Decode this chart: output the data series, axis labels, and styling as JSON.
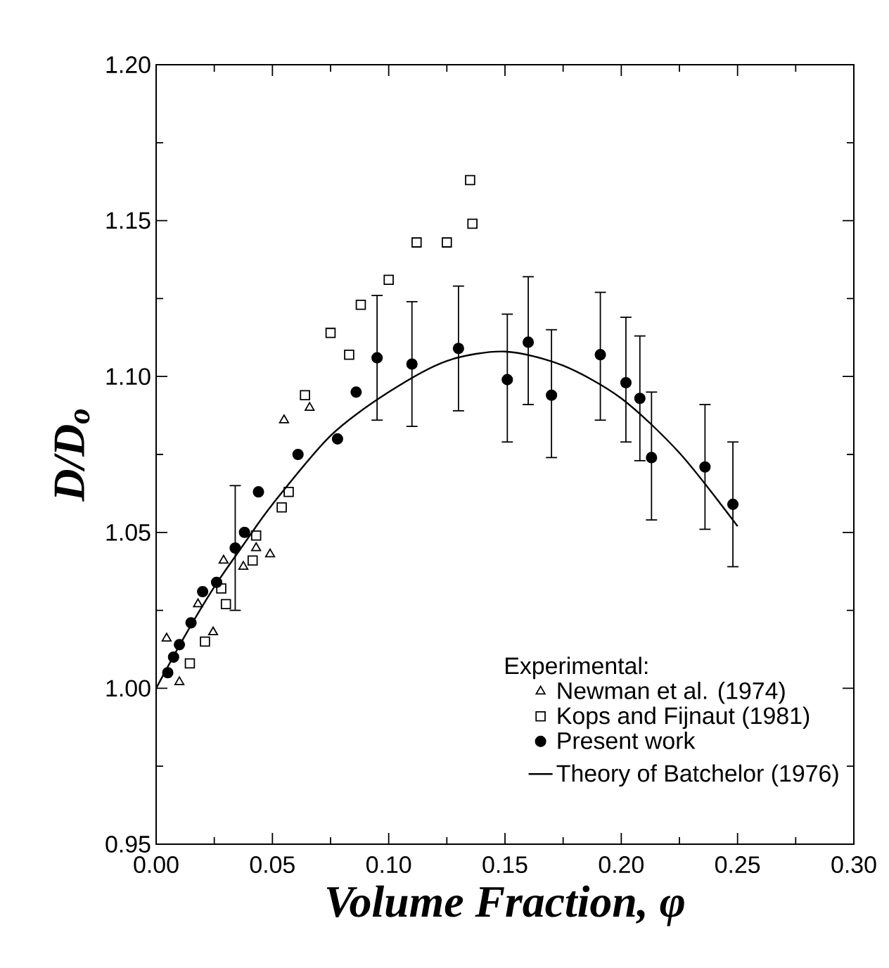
{
  "chart_data": {
    "type": "scatter",
    "xlabel": "Volume Fraction, φ",
    "ylabel": "D/D$_{o}$",
    "legend_title": "Experimental:",
    "xlim": [
      0,
      0.3
    ],
    "ylim": [
      0.95,
      1.2
    ],
    "xticks": [
      {
        "value": 0,
        "label": "0.00"
      },
      0.05,
      {
        "value": 0.1,
        "label": "0.10"
      },
      0.15,
      {
        "value": 0.2,
        "label": "0.20"
      },
      0.25,
      {
        "value": 0.3,
        "label": "0.30"
      }
    ],
    "yticks": [
      0.95,
      {
        "value": 1.0,
        "label": "1.00"
      },
      1.05,
      {
        "value": 1.1,
        "label": "1.10"
      },
      1.15,
      {
        "value": 1.2,
        "label": "1.20"
      }
    ],
    "grid": false,
    "legend": "bottom right",
    "series": [
      {
        "name": "Newman et al. (1974)",
        "color": "#000000",
        "marker": "triangle",
        "x": [
          0.0045,
          0.01,
          0.018,
          0.0245,
          0.029,
          0.0375,
          0.043,
          0.049,
          0.055,
          0.066
        ],
        "values": [
          1.016,
          1.002,
          1.027,
          1.018,
          1.041,
          1.039,
          1.045,
          1.043,
          1.086,
          1.09
        ]
      },
      {
        "name": "Kops and Fijnaut (1981)",
        "color": "#000000",
        "marker": "square",
        "x": [
          0.0145,
          0.021,
          0.028,
          0.03,
          0.0415,
          0.043,
          0.054,
          0.057,
          0.064,
          0.075,
          0.083,
          0.088,
          0.1,
          0.112,
          0.125,
          0.135,
          0.136
        ],
        "values": [
          1.008,
          1.015,
          1.032,
          1.027,
          1.041,
          1.049,
          1.058,
          1.063,
          1.094,
          1.114,
          1.107,
          1.123,
          1.131,
          1.143,
          1.143,
          1.163,
          1.149
        ]
      },
      {
        "name": "Present work",
        "color": "#000000",
        "marker": "circle",
        "x": [
          0.005,
          0.0075,
          0.01,
          0.015,
          0.02,
          0.026,
          0.034,
          0.038,
          0.044,
          0.061,
          0.078,
          0.086,
          0.095,
          0.11,
          0.13,
          0.151,
          0.16,
          0.17,
          0.191,
          0.202,
          0.208,
          0.213,
          0.236,
          0.248
        ],
        "values": [
          1.005,
          1.01,
          1.014,
          1.021,
          1.031,
          1.034,
          1.045,
          1.05,
          1.063,
          1.075,
          1.08,
          1.095,
          1.106,
          1.104,
          1.109,
          1.099,
          1.111,
          1.094,
          1.107,
          1.098,
          1.093,
          1.074,
          1.071,
          1.059
        ],
        "errors": [
          null,
          null,
          null,
          null,
          null,
          null,
          [
            1.025,
            1.065
          ],
          null,
          null,
          null,
          null,
          null,
          [
            1.086,
            1.126
          ],
          [
            1.084,
            1.124
          ],
          [
            1.089,
            1.129
          ],
          [
            1.079,
            1.12
          ],
          [
            1.091,
            1.132
          ],
          [
            1.074,
            1.115
          ],
          [
            1.086,
            1.127
          ],
          [
            1.079,
            1.119
          ],
          [
            1.073,
            1.113
          ],
          [
            1.054,
            1.095
          ],
          [
            1.051,
            1.091
          ],
          [
            1.039,
            1.079
          ]
        ]
      },
      {
        "name": "Theory of Batchelor (1976)",
        "type": "line",
        "color": "#000000",
        "marker": "none",
        "line_style": "solid",
        "x": [
          0,
          0.0125,
          0.025,
          0.0375,
          0.05,
          0.075,
          0.1,
          0.125,
          0.15,
          0.175,
          0.2,
          0.225,
          0.25
        ],
        "values": [
          1.0,
          1.017,
          1.0325,
          1.046,
          1.059,
          1.081,
          1.095,
          1.105,
          1.108,
          1.1035,
          1.093,
          1.0755,
          1.052
        ]
      }
    ]
  }
}
